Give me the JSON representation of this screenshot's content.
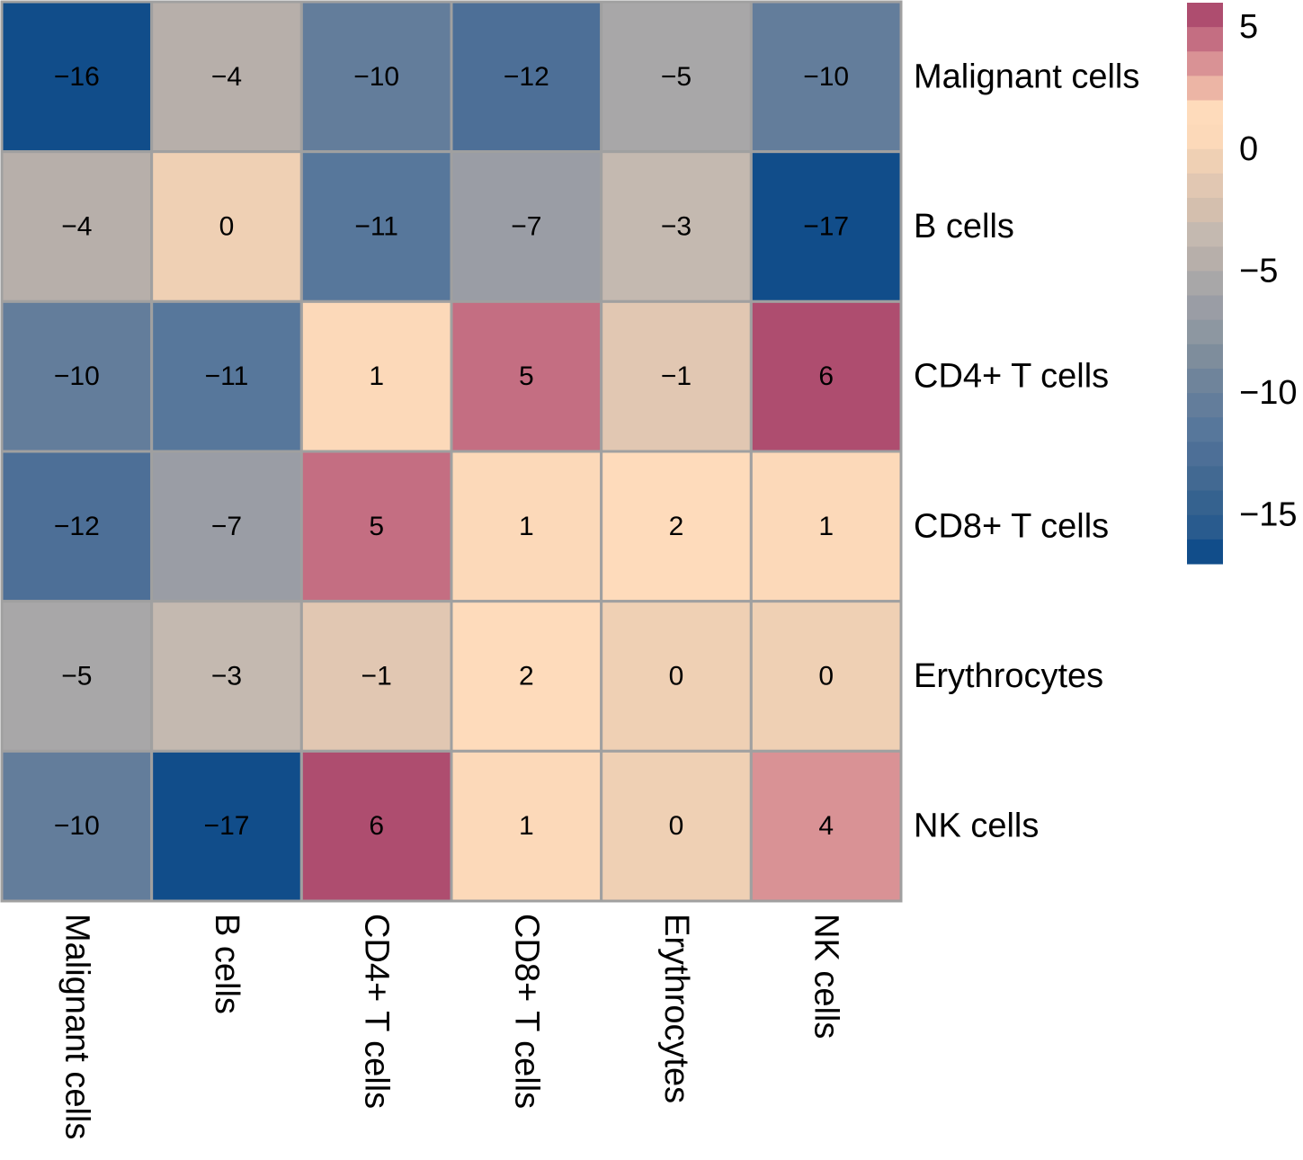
{
  "chart_data": {
    "type": "heatmap",
    "title": "",
    "xlabel": "",
    "ylabel": "",
    "rows": [
      "Malignant cells",
      "B cells",
      "CD4+ T cells",
      "CD8+ T cells",
      "Erythrocytes",
      "NK cells"
    ],
    "columns": [
      "Malignant cells",
      "B cells",
      "CD4+ T cells",
      "CD8+ T cells",
      "Erythrocytes",
      "NK cells"
    ],
    "values": [
      [
        -16,
        -4,
        -10,
        -12,
        -5,
        -10
      ],
      [
        -4,
        0,
        -11,
        -7,
        -3,
        -17
      ],
      [
        -10,
        -11,
        1,
        5,
        -1,
        6
      ],
      [
        -12,
        -7,
        5,
        1,
        2,
        1
      ],
      [
        -5,
        -3,
        -1,
        2,
        0,
        0
      ],
      [
        -10,
        -17,
        6,
        1,
        0,
        4
      ]
    ],
    "cell_labels_shown": true,
    "color_scale": {
      "range": [
        -17,
        6
      ],
      "ticks": [
        5,
        0,
        -5,
        -10,
        -15
      ],
      "tick_labels": [
        "5",
        "0",
        "−5",
        "−10",
        "−15"
      ],
      "colors_top_to_bottom": [
        "#ae4d6f",
        "#c46e82",
        "#d99295",
        "#ecb5a5",
        "#fedbbb",
        "#fcd9b9",
        "#efd0b4",
        "#e1c7b2",
        "#d4bfae",
        "#c4b9b0",
        "#b7afaa",
        "#a8a7a8",
        "#9a9da5",
        "#8d97a1",
        "#7e8d9c",
        "#6f849b",
        "#637d9b",
        "#57779b",
        "#4d6f97",
        "#426992",
        "#35628f",
        "#295b8e",
        "#114d8a"
      ],
      "legend_position": "top-right"
    },
    "grid_color": "#a0a0a0"
  }
}
